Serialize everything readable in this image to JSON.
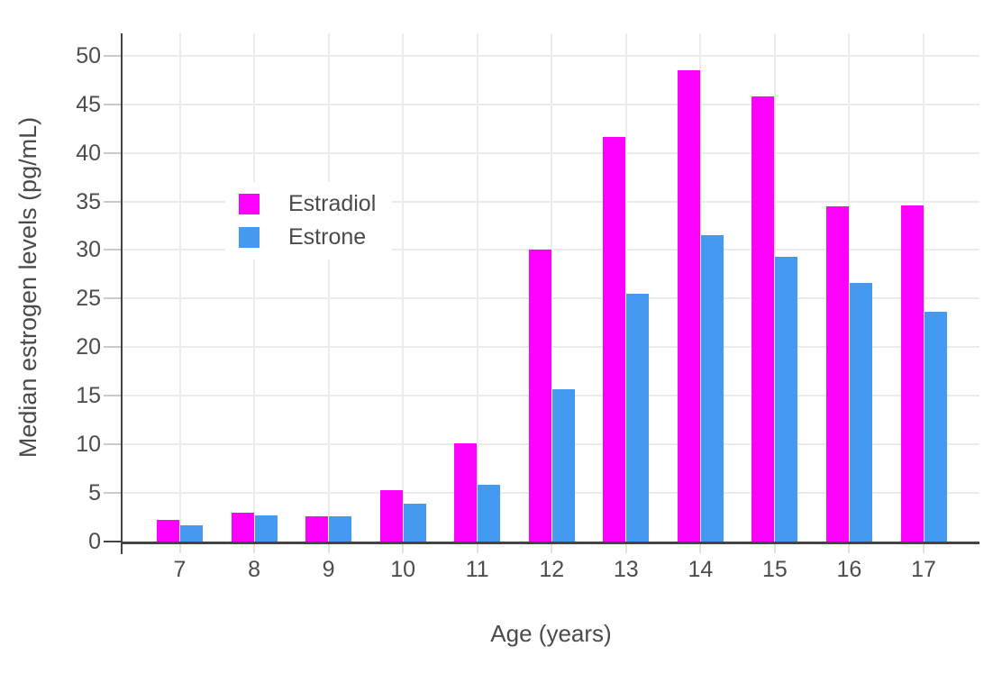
{
  "chart_data": {
    "type": "bar",
    "title": "",
    "xlabel": "Age (years)",
    "ylabel": "Median estrogen levels (pg/mL)",
    "categories": [
      "7",
      "8",
      "9",
      "10",
      "11",
      "12",
      "13",
      "14",
      "15",
      "16",
      "17"
    ],
    "series": [
      {
        "name": "Estradiol",
        "color": "#FF00FF",
        "values": [
          2.2,
          3.0,
          2.6,
          5.3,
          10.1,
          30.0,
          41.6,
          48.5,
          45.8,
          34.5,
          34.6
        ]
      },
      {
        "name": "Estrone",
        "color": "#4499F0",
        "values": [
          1.7,
          2.7,
          2.6,
          3.9,
          5.8,
          15.7,
          25.5,
          31.5,
          29.3,
          26.6,
          23.6
        ]
      }
    ],
    "ylim": [
      0,
      52.3
    ],
    "yticks": [
      0,
      5,
      10,
      15,
      20,
      25,
      30,
      35,
      40,
      45,
      50
    ],
    "grid": "both",
    "legend_position": "inside-top-left",
    "legend_labels": [
      "Estradiol",
      "Estrone"
    ]
  },
  "colors": {
    "background": "#ffffff",
    "axis_line": "#444444",
    "gridline": "#ebebeb",
    "tick": "#c9c9c9",
    "text": "#4a4a4a",
    "estradiol": "#FF00FF",
    "estrone": "#4499F0"
  }
}
